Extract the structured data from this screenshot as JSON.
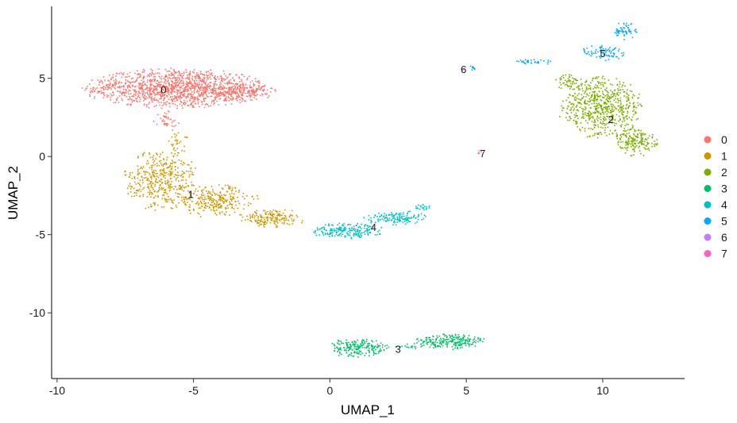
{
  "chart_data": {
    "type": "scatter",
    "title": "",
    "xlabel": "UMAP_1",
    "ylabel": "UMAP_2",
    "xlim": [
      -10.2,
      13.0
    ],
    "ylim": [
      -14.2,
      9.6
    ],
    "x_ticks": [
      -10,
      -5,
      0,
      5,
      10
    ],
    "y_ticks": [
      -10,
      -5,
      0,
      5
    ],
    "grid": false,
    "legend_position": "right",
    "legend": [
      {
        "name": "0",
        "color": "#F8766D"
      },
      {
        "name": "1",
        "color": "#CD9600"
      },
      {
        "name": "2",
        "color": "#7CAE00"
      },
      {
        "name": "3",
        "color": "#00BE67"
      },
      {
        "name": "4",
        "color": "#00BFC4"
      },
      {
        "name": "5",
        "color": "#00A9FF"
      },
      {
        "name": "6",
        "color": "#C77CFF"
      },
      {
        "name": "7",
        "color": "#FF61CC"
      }
    ],
    "clusters": [
      {
        "id": "0",
        "label": "0",
        "label_pos": [
          -6.1,
          4.3
        ],
        "color": "#F8766D",
        "regions": [
          {
            "cx": -5.7,
            "cy": 4.4,
            "rx": 3.4,
            "ry": 1.3,
            "n": 1300
          },
          {
            "cx": -3.2,
            "cy": 4.2,
            "rx": 1.2,
            "ry": 0.7,
            "n": 180
          },
          {
            "cx": -6.0,
            "cy": 2.4,
            "rx": 0.5,
            "ry": 0.8,
            "n": 40
          }
        ]
      },
      {
        "id": "1",
        "label": "1",
        "label_pos": [
          -5.1,
          -2.4
        ],
        "color": "#CD9600",
        "regions": [
          {
            "cx": -6.2,
            "cy": -1.5,
            "rx": 1.4,
            "ry": 2.0,
            "n": 420
          },
          {
            "cx": -4.2,
            "cy": -2.8,
            "rx": 1.6,
            "ry": 1.1,
            "n": 260
          },
          {
            "cx": -2.2,
            "cy": -3.9,
            "rx": 1.4,
            "ry": 0.6,
            "n": 170
          },
          {
            "cx": -5.6,
            "cy": 0.9,
            "rx": 0.4,
            "ry": 0.8,
            "n": 30
          }
        ]
      },
      {
        "id": "2",
        "label": "2",
        "label_pos": [
          10.3,
          2.4
        ],
        "color": "#7CAE00",
        "regions": [
          {
            "cx": 9.9,
            "cy": 3.2,
            "rx": 1.6,
            "ry": 2.0,
            "n": 620
          },
          {
            "cx": 11.2,
            "cy": 1.0,
            "rx": 0.8,
            "ry": 1.0,
            "n": 180
          },
          {
            "cx": 8.8,
            "cy": 4.8,
            "rx": 0.7,
            "ry": 0.5,
            "n": 60
          }
        ]
      },
      {
        "id": "3",
        "label": "3",
        "label_pos": [
          2.5,
          -12.3
        ],
        "color": "#00BE67",
        "regions": [
          {
            "cx": 1.0,
            "cy": -12.2,
            "rx": 1.2,
            "ry": 0.6,
            "n": 200
          },
          {
            "cx": 4.4,
            "cy": -11.8,
            "rx": 1.4,
            "ry": 0.5,
            "n": 220
          },
          {
            "cx": 2.9,
            "cy": -12.1,
            "rx": 0.6,
            "ry": 0.2,
            "n": 20
          }
        ]
      },
      {
        "id": "4",
        "label": "4",
        "label_pos": [
          1.6,
          -4.5
        ],
        "color": "#00BFC4",
        "regions": [
          {
            "cx": 0.6,
            "cy": -4.7,
            "rx": 1.4,
            "ry": 0.5,
            "n": 200
          },
          {
            "cx": 2.4,
            "cy": -3.9,
            "rx": 1.2,
            "ry": 0.5,
            "n": 140
          },
          {
            "cx": 3.4,
            "cy": -3.2,
            "rx": 0.4,
            "ry": 0.2,
            "n": 20
          }
        ]
      },
      {
        "id": "5",
        "label": "5",
        "label_pos": [
          10.0,
          6.6
        ],
        "color": "#00A9FF",
        "regions": [
          {
            "cx": 10.0,
            "cy": 6.7,
            "rx": 0.8,
            "ry": 0.6,
            "n": 80
          },
          {
            "cx": 10.8,
            "cy": 8.1,
            "rx": 0.5,
            "ry": 0.6,
            "n": 60
          },
          {
            "cx": 7.4,
            "cy": 6.1,
            "rx": 0.8,
            "ry": 0.2,
            "n": 35
          },
          {
            "cx": 5.2,
            "cy": 5.7,
            "rx": 0.2,
            "ry": 0.15,
            "n": 10
          }
        ]
      },
      {
        "id": "6",
        "label": "6",
        "label_pos": [
          4.9,
          5.6
        ],
        "color": "#C77CFF",
        "regions": [
          {
            "cx": 4.9,
            "cy": 5.6,
            "rx": 0.12,
            "ry": 0.12,
            "n": 4
          }
        ]
      },
      {
        "id": "7",
        "label": "7",
        "label_pos": [
          5.6,
          0.2
        ],
        "color": "#FF61CC",
        "regions": [
          {
            "cx": 5.4,
            "cy": 0.3,
            "rx": 0.2,
            "ry": 0.12,
            "n": 5
          }
        ]
      }
    ]
  }
}
